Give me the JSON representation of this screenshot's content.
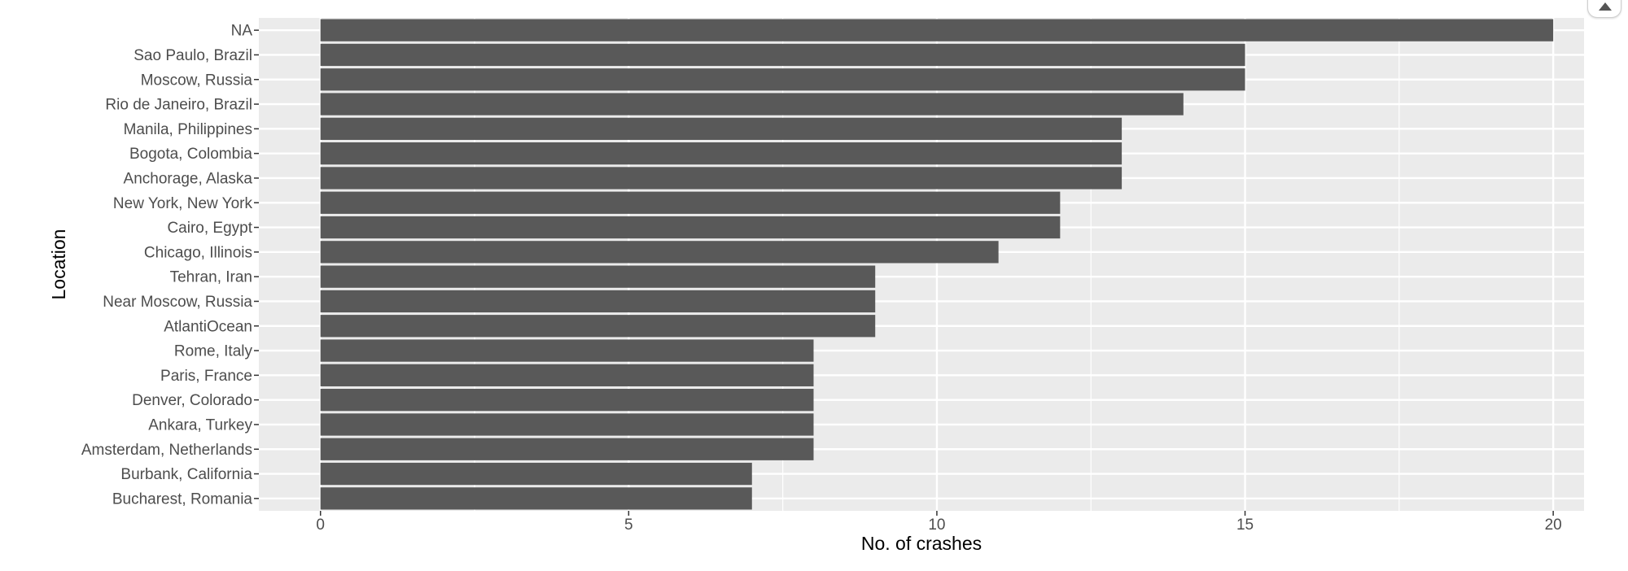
{
  "chart_data": {
    "type": "bar",
    "orientation": "horizontal",
    "title": "",
    "xlabel": "No. of crashes",
    "ylabel": "Location",
    "categories": [
      "NA",
      "Sao Paulo, Brazil",
      "Moscow, Russia",
      "Rio de Janeiro, Brazil",
      "Manila, Philippines",
      "Bogota, Colombia",
      "Anchorage, Alaska",
      "New York, New York",
      "Cairo, Egypt",
      "Chicago, Illinois",
      "Tehran, Iran",
      "Near Moscow, Russia",
      "AtlantiOcean",
      "Rome, Italy",
      "Paris, France",
      "Denver, Colorado",
      "Ankara, Turkey",
      "Amsterdam, Netherlands",
      "Burbank, California",
      "Bucharest, Romania"
    ],
    "values": [
      20,
      15,
      15,
      14,
      13,
      13,
      13,
      12,
      12,
      11,
      9,
      9,
      9,
      8,
      8,
      8,
      8,
      8,
      7,
      7
    ],
    "xlim": [
      -1,
      20.5
    ],
    "xticks": [
      "0",
      "5",
      "10",
      "15",
      "20"
    ],
    "grid": true,
    "legend": "none",
    "colors": {
      "bar": "#595959",
      "panel_background": "#ebebeb",
      "grid": "#ffffff"
    }
  },
  "ui": {
    "scroll_top_icon": "chevron-up-icon"
  }
}
